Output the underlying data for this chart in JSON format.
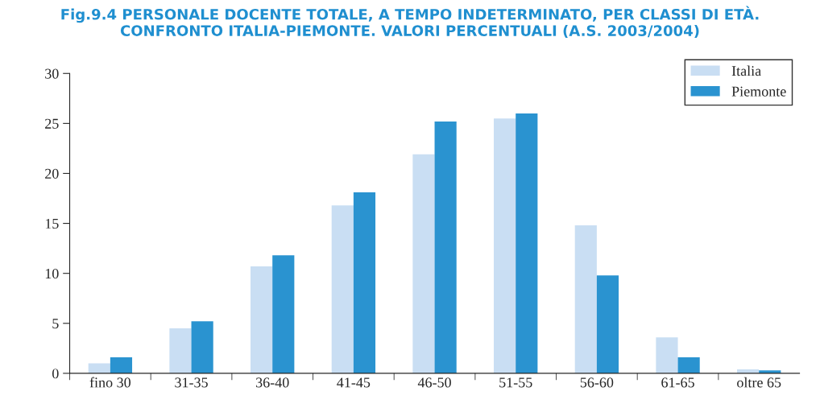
{
  "chart_data": {
    "type": "bar",
    "title": "Fig.9.4 PERSONALE DOCENTE TOTALE, A TEMPO INDETERMINATO, PER CLASSI DI ETÀ.\nCONFRONTO ITALIA-PIEMONTE. VALORI PERCENTUALI (A.S. 2003/2004)",
    "categories": [
      "fino 30",
      "31-35",
      "36-40",
      "41-45",
      "46-50",
      "51-55",
      "56-60",
      "61-65",
      "oltre 65"
    ],
    "series": [
      {
        "name": "Italia",
        "color": "#c9def3",
        "values": [
          1.0,
          4.5,
          10.7,
          16.8,
          21.9,
          25.5,
          14.8,
          3.6,
          0.4
        ]
      },
      {
        "name": "Piemonte",
        "color": "#2a93d0",
        "values": [
          1.6,
          5.2,
          11.8,
          18.1,
          25.2,
          26.0,
          9.8,
          1.6,
          0.3
        ]
      }
    ],
    "ylim": [
      0,
      30
    ],
    "yticks": [
      0,
      5,
      10,
      15,
      20,
      25,
      30
    ],
    "grid": false,
    "legend": "top right"
  }
}
